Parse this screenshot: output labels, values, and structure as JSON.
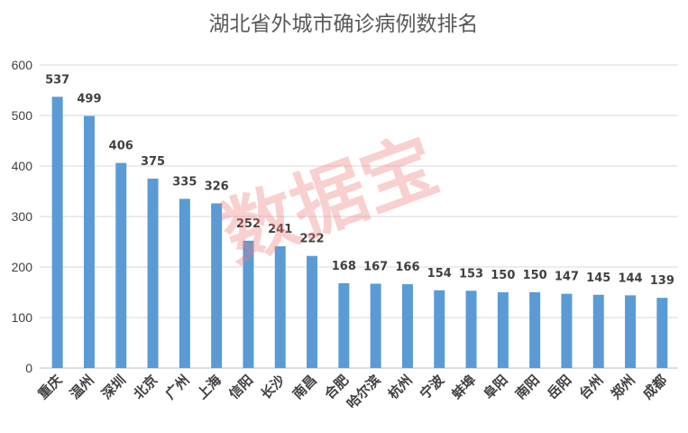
{
  "chart_data": {
    "type": "bar",
    "title": "湖北省外城市确诊病例数排名",
    "categories": [
      "重庆",
      "温州",
      "深圳",
      "北京",
      "广州",
      "上海",
      "信阳",
      "长沙",
      "南昌",
      "合肥",
      "哈尔滨",
      "杭州",
      "宁波",
      "蚌埠",
      "阜阳",
      "南阳",
      "岳阳",
      "台州",
      "郑州",
      "成都"
    ],
    "values": [
      537,
      499,
      406,
      375,
      335,
      326,
      252,
      241,
      222,
      168,
      167,
      166,
      154,
      153,
      150,
      150,
      147,
      145,
      144,
      139
    ],
    "ylim": [
      0,
      600
    ],
    "yticks": [
      0,
      100,
      200,
      300,
      400,
      500,
      600
    ],
    "grid": true,
    "legend": "none",
    "bar_color": "#5b9bd5",
    "watermark": "数据宝"
  }
}
